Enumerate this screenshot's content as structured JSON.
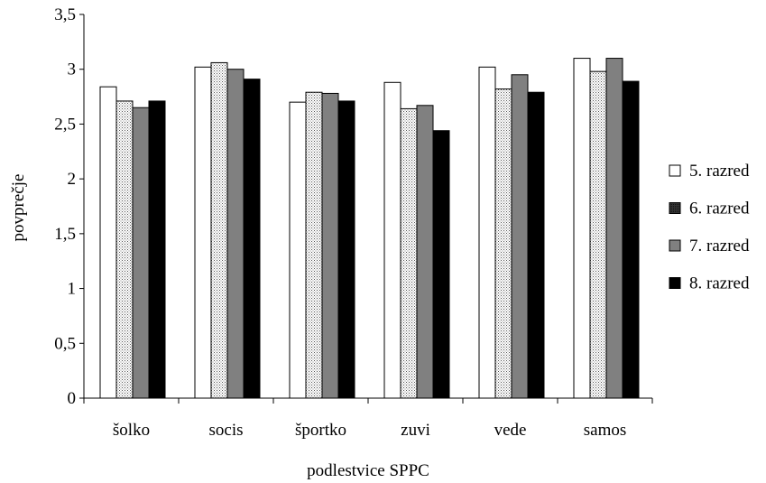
{
  "chart_data": {
    "type": "bar",
    "title": "",
    "xlabel": "podlestvice SPPC",
    "ylabel": "povprečje",
    "categories": [
      "šolko",
      "socis",
      "športko",
      "zuvi",
      "vede",
      "samos"
    ],
    "ylim": [
      0,
      3.5
    ],
    "yticks": [
      "0",
      "0,5",
      "1",
      "1,5",
      "2",
      "2,5",
      "3",
      "3,5"
    ],
    "ytick_values": [
      0,
      0.5,
      1,
      1.5,
      2,
      2.5,
      3,
      3.5
    ],
    "grid": false,
    "legend_position": "right",
    "series": [
      {
        "name": "5. razred",
        "values": [
          2.84,
          3.02,
          2.7,
          2.88,
          3.02,
          3.1
        ],
        "fill": "white"
      },
      {
        "name": "6. razred",
        "values": [
          2.71,
          3.06,
          2.79,
          2.64,
          2.82,
          2.98
        ],
        "fill": "dotted"
      },
      {
        "name": "7. razred",
        "values": [
          2.65,
          3.0,
          2.78,
          2.67,
          2.95,
          3.1
        ],
        "fill": "gray"
      },
      {
        "name": "8. razred",
        "values": [
          2.71,
          2.91,
          2.71,
          2.44,
          2.79,
          2.89
        ],
        "fill": "black"
      }
    ],
    "colors": {
      "white": "#ffffff",
      "gray": "#808080",
      "black": "#000000",
      "dot": "#555555"
    }
  }
}
